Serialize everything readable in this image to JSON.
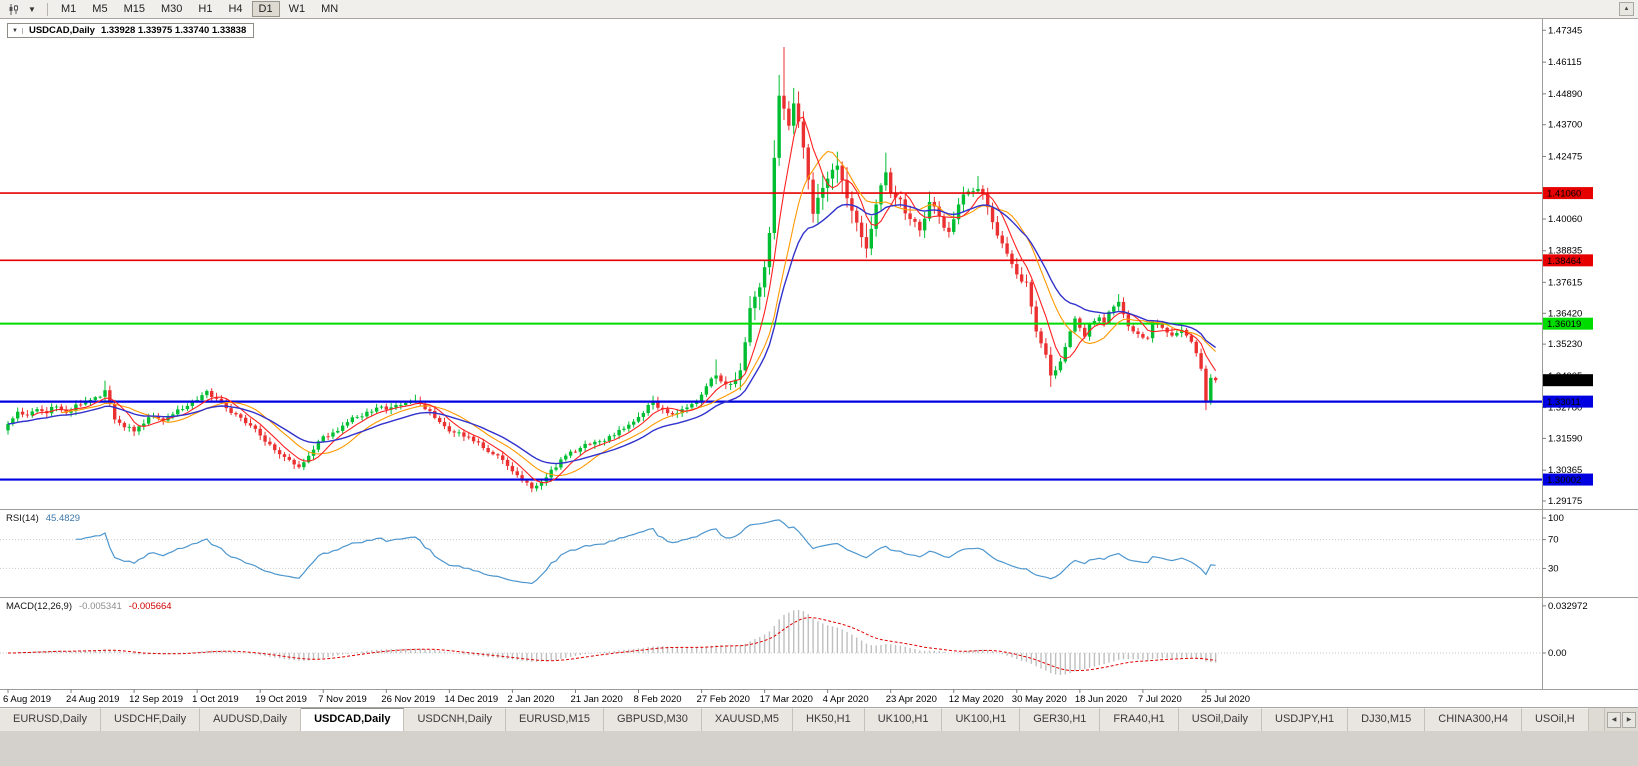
{
  "toolbar": {
    "timeframes": [
      {
        "label": "M1"
      },
      {
        "label": "M5"
      },
      {
        "label": "M15"
      },
      {
        "label": "M30"
      },
      {
        "label": "H1"
      },
      {
        "label": "H4"
      },
      {
        "label": "D1",
        "active": true
      },
      {
        "label": "W1"
      },
      {
        "label": "MN"
      }
    ],
    "icons": {
      "chart_selector_caret": "▼",
      "scroll_up": "▲"
    }
  },
  "title": {
    "caret": "▼",
    "symbol": "USDCAD,Daily",
    "ohlc": "1.33928 1.33975 1.33740 1.33838"
  },
  "tabs": {
    "nav_left_icon": "◀",
    "nav_right_icon": "▶",
    "items": [
      {
        "label": "EURUSD,Daily"
      },
      {
        "label": "USDCHF,Daily"
      },
      {
        "label": "AUDUSD,Daily"
      },
      {
        "label": "USDCAD,Daily",
        "active": true
      },
      {
        "label": "USDCNH,Daily"
      },
      {
        "label": "EURUSD,M15"
      },
      {
        "label": "GBPUSD,M30"
      },
      {
        "label": "XAUUSD,M5"
      },
      {
        "label": "HK50,H1"
      },
      {
        "label": "UK100,H1"
      },
      {
        "label": "UK100,H1"
      },
      {
        "label": "GER30,H1"
      },
      {
        "label": "FRA40,H1"
      },
      {
        "label": "USOil,Daily"
      },
      {
        "label": "USDJPY,H1"
      },
      {
        "label": "DJ30,M15"
      },
      {
        "label": "CHINA300,H4"
      },
      {
        "label": "USOil,H"
      }
    ]
  },
  "chart_data": {
    "type": "candlestick",
    "symbol": "USDCAD",
    "timeframe": "Daily",
    "ohlc_display": {
      "open": "1.33928",
      "high": "1.33975",
      "low": "1.33740",
      "close": "1.33838"
    },
    "candle_count": 250,
    "first_open": 1.319,
    "candles_per_date_label": 13,
    "x_axis_dates": [
      "6 Aug 2019",
      "24 Aug 2019",
      "12 Sep 2019",
      "1 Oct 2019",
      "19 Oct 2019",
      "7 Nov 2019",
      "26 Nov 2019",
      "14 Dec 2019",
      "2 Jan 2020",
      "21 Jan 2020",
      "8 Feb 2020",
      "27 Feb 2020",
      "17 Mar 2020",
      "4 Apr 2020",
      "23 Apr 2020",
      "12 May 2020",
      "30 May 2020",
      "18 Jun 2020",
      "7 Jul 2020",
      "25 Jul 2020"
    ],
    "price_scale": {
      "top": 1.4778,
      "bottom": 1.2902
    },
    "price_axis_labels": [
      "1.47345",
      "1.46115",
      "1.44890",
      "1.43700",
      "1.42475",
      "1.40060",
      "1.38835",
      "1.37615",
      "1.36420",
      "1.35230",
      "1.34005",
      "1.32780",
      "1.31590",
      "1.30365",
      "1.29175"
    ],
    "horizontal_lines": [
      {
        "price": 1.4106,
        "label": "1.41060",
        "color": "#e60000",
        "width": 1.6
      },
      {
        "price": 1.38464,
        "label": "1.38464",
        "color": "#e60000",
        "width": 1.6
      },
      {
        "price": 1.36019,
        "label": "1.36019",
        "color": "#00dc00",
        "width": 2
      },
      {
        "price": 1.33011,
        "label": "1.33011",
        "color": "#0000e0",
        "width": 2.2
      },
      {
        "price": 1.30002,
        "label": "1.30002",
        "color": "#0000e0",
        "width": 2.2
      }
    ],
    "current_price_tag": {
      "price": 1.33838,
      "label": "1.33838",
      "bg": "#000000",
      "fg": "#ffffff"
    },
    "colors": {
      "bull": "#00be32",
      "bear": "#ea3030",
      "ma_fast": "#ff2020",
      "ma_mid": "#ff9900",
      "ma_slow": "#3232cc",
      "rsi": "#4d96ce",
      "macd_hist": "#bfbfbf",
      "macd_signal": "#e00000",
      "axis_line": "#9e9c98",
      "level_dots": "#c9c9c9"
    },
    "price_path_anchors": [
      [
        0,
        1.3215
      ],
      [
        2,
        1.3262
      ],
      [
        4,
        1.3248
      ],
      [
        6,
        1.3272
      ],
      [
        8,
        1.3256
      ],
      [
        10,
        1.3282
      ],
      [
        12,
        1.3258
      ],
      [
        14,
        1.329
      ],
      [
        16,
        1.3302
      ],
      [
        18,
        1.3318
      ],
      [
        20,
        1.3345
      ],
      [
        21,
        1.3292
      ],
      [
        22,
        1.3232
      ],
      [
        24,
        1.3202
      ],
      [
        26,
        1.3186
      ],
      [
        28,
        1.3216
      ],
      [
        30,
        1.3246
      ],
      [
        32,
        1.3228
      ],
      [
        34,
        1.3252
      ],
      [
        36,
        1.3272
      ],
      [
        38,
        1.3302
      ],
      [
        40,
        1.3326
      ],
      [
        41,
        1.3342
      ],
      [
        43,
        1.3312
      ],
      [
        45,
        1.3276
      ],
      [
        47,
        1.3252
      ],
      [
        49,
        1.3218
      ],
      [
        51,
        1.3196
      ],
      [
        54,
        1.3136
      ],
      [
        56,
        1.3098
      ],
      [
        58,
        1.3076
      ],
      [
        60,
        1.3048
      ],
      [
        62,
        1.3092
      ],
      [
        64,
        1.3148
      ],
      [
        66,
        1.3166
      ],
      [
        68,
        1.3188
      ],
      [
        70,
        1.3222
      ],
      [
        72,
        1.3242
      ],
      [
        74,
        1.3262
      ],
      [
        76,
        1.3278
      ],
      [
        78,
        1.327
      ],
      [
        80,
        1.3288
      ],
      [
        82,
        1.3296
      ],
      [
        84,
        1.3303
      ],
      [
        86,
        1.3272
      ],
      [
        88,
        1.3238
      ],
      [
        90,
        1.3206
      ],
      [
        92,
        1.3182
      ],
      [
        94,
        1.3166
      ],
      [
        96,
        1.3148
      ],
      [
        98,
        1.3122
      ],
      [
        100,
        1.3098
      ],
      [
        102,
        1.3076
      ],
      [
        104,
        1.3032
      ],
      [
        106,
        1.2996
      ],
      [
        108,
        1.2966
      ],
      [
        110,
        1.2992
      ],
      [
        112,
        1.3038
      ],
      [
        114,
        1.3078
      ],
      [
        116,
        1.3108
      ],
      [
        118,
        1.3122
      ],
      [
        120,
        1.3136
      ],
      [
        122,
        1.3148
      ],
      [
        124,
        1.3168
      ],
      [
        126,
        1.3192
      ],
      [
        128,
        1.3212
      ],
      [
        130,
        1.3242
      ],
      [
        132,
        1.3288
      ],
      [
        133,
        1.3302
      ],
      [
        135,
        1.3272
      ],
      [
        137,
        1.3252
      ],
      [
        139,
        1.3272
      ],
      [
        141,
        1.3292
      ],
      [
        143,
        1.3328
      ],
      [
        145,
        1.339
      ],
      [
        146,
        1.3402
      ],
      [
        148,
        1.3368
      ],
      [
        150,
        1.3386
      ],
      [
        151,
        1.3422
      ],
      [
        152,
        1.353
      ],
      [
        153,
        1.3662
      ],
      [
        154,
        1.3706
      ],
      [
        155,
        1.3742
      ],
      [
        156,
        1.382
      ],
      [
        157,
        1.3952
      ],
      [
        158,
        1.4242
      ],
      [
        159,
        1.4482
      ],
      [
        160,
        1.4432
      ],
      [
        161,
        1.4366
      ],
      [
        162,
        1.4452
      ],
      [
        163,
        1.4382
      ],
      [
        164,
        1.4282
      ],
      [
        165,
        1.4158
      ],
      [
        166,
        1.4026
      ],
      [
        167,
        1.4088
      ],
      [
        168,
        1.4126
      ],
      [
        169,
        1.4162
      ],
      [
        170,
        1.4196
      ],
      [
        171,
        1.4212
      ],
      [
        172,
        1.4156
      ],
      [
        173,
        1.4086
      ],
      [
        174,
        1.4038
      ],
      [
        175,
        1.3992
      ],
      [
        176,
        1.3936
      ],
      [
        177,
        1.3892
      ],
      [
        178,
        1.3968
      ],
      [
        179,
        1.4062
      ],
      [
        180,
        1.4136
      ],
      [
        181,
        1.4186
      ],
      [
        182,
        1.4106
      ],
      [
        184,
        1.4082
      ],
      [
        186,
        1.4006
      ],
      [
        188,
        1.3962
      ],
      [
        190,
        1.4072
      ],
      [
        192,
        1.4016
      ],
      [
        194,
        1.3956
      ],
      [
        196,
        1.4062
      ],
      [
        198,
        1.4112
      ],
      [
        200,
        1.4122
      ],
      [
        202,
        1.4052
      ],
      [
        204,
        1.3942
      ],
      [
        206,
        1.3872
      ],
      [
        208,
        1.3792
      ],
      [
        210,
        1.3762
      ],
      [
        211,
        1.3668
      ],
      [
        212,
        1.3572
      ],
      [
        213,
        1.3526
      ],
      [
        214,
        1.3482
      ],
      [
        215,
        1.3402
      ],
      [
        216,
        1.3422
      ],
      [
        217,
        1.3456
      ],
      [
        218,
        1.3512
      ],
      [
        219,
        1.3572
      ],
      [
        220,
        1.3622
      ],
      [
        221,
        1.3586
      ],
      [
        222,
        1.3552
      ],
      [
        223,
        1.3602
      ],
      [
        224,
        1.3612
      ],
      [
        225,
        1.3626
      ],
      [
        226,
        1.3606
      ],
      [
        227,
        1.3648
      ],
      [
        228,
        1.3668
      ],
      [
        229,
        1.3686
      ],
      [
        230,
        1.3638
      ],
      [
        231,
        1.3592
      ],
      [
        232,
        1.3572
      ],
      [
        233,
        1.3562
      ],
      [
        234,
        1.3548
      ],
      [
        235,
        1.3546
      ],
      [
        236,
        1.3608
      ],
      [
        237,
        1.3598
      ],
      [
        238,
        1.3586
      ],
      [
        239,
        1.3568
      ],
      [
        240,
        1.3556
      ],
      [
        241,
        1.3566
      ],
      [
        242,
        1.3578
      ],
      [
        243,
        1.3556
      ],
      [
        244,
        1.3532
      ],
      [
        245,
        1.3488
      ],
      [
        246,
        1.3428
      ],
      [
        247,
        1.3298
      ],
      [
        248,
        1.33928
      ],
      [
        249,
        1.33838
      ]
    ],
    "wick_overrides": {
      "highs": {
        "20": 1.3382,
        "41": 1.3348,
        "84": 1.3328,
        "133": 1.3324,
        "146": 1.3464,
        "158": 1.431,
        "159": 1.4562,
        "160": 1.467,
        "162": 1.4512,
        "171": 1.4266,
        "181": 1.4262,
        "190": 1.4112,
        "200": 1.4172,
        "229": 1.3716,
        "249": 1.33975
      },
      "lows": {
        "26": 1.3168,
        "60": 1.3042,
        "108": 1.2951,
        "152": 1.3418,
        "166": 1.3992,
        "177": 1.3856,
        "215": 1.3358,
        "247": 1.3268,
        "249": 1.3374
      }
    },
    "indicators": {
      "rsi": {
        "name": "RSI(14)",
        "value": "45.4829",
        "axis_labels": [
          "100",
          "70",
          "30"
        ],
        "level_lines": [
          70,
          30
        ]
      },
      "macd": {
        "name": "MACD(12,26,9)",
        "value_main": "-0.005341",
        "value_signal": "-0.005664",
        "axis_labels": [
          "0.032972",
          "0.00"
        ]
      }
    }
  }
}
